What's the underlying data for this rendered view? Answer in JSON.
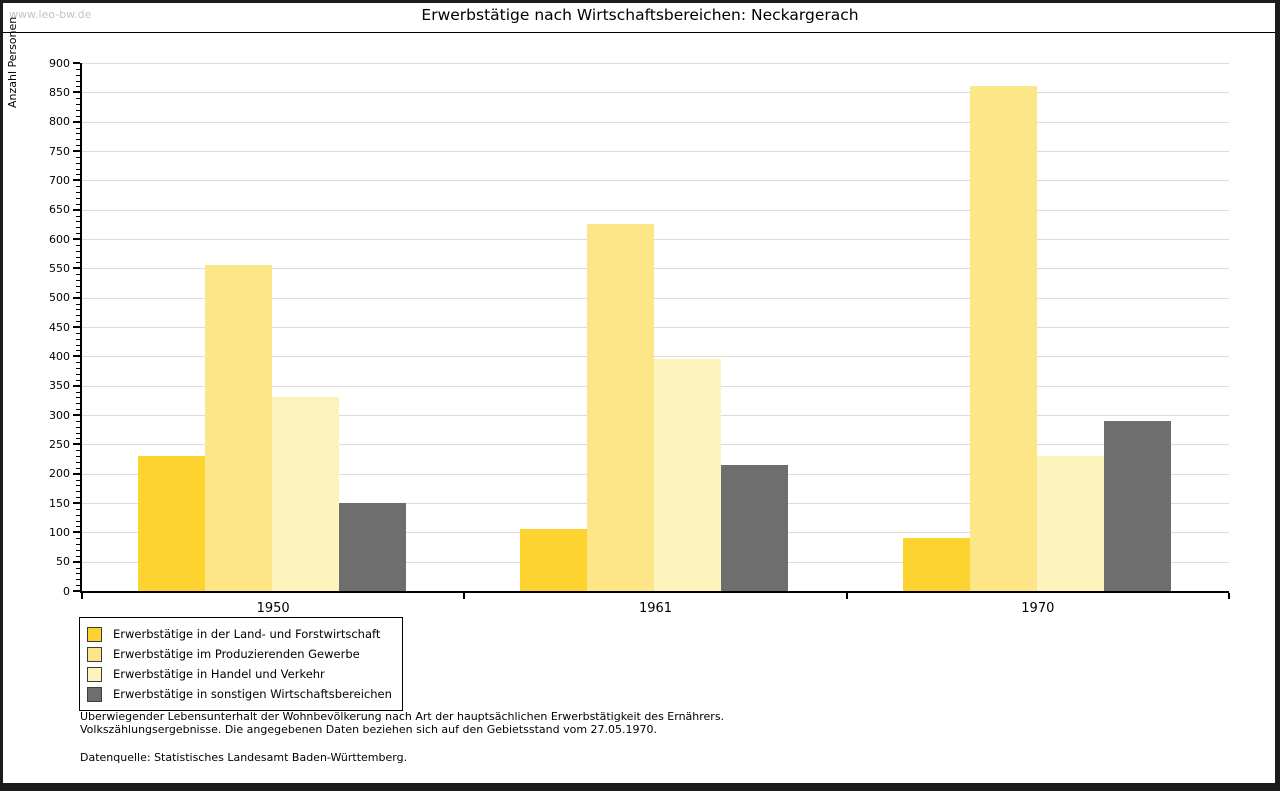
{
  "header": {
    "watermark": "www.leo-bw.de"
  },
  "chart_data": {
    "type": "bar",
    "title": "Erwerbstätige nach Wirtschaftsbereichen: Neckargerach",
    "xlabel": "",
    "ylabel": "Anzahl Personen",
    "categories": [
      "1950",
      "1961",
      "1970"
    ],
    "series": [
      {
        "name": "Erwerbstätige in der Land- und Forstwirtschaft",
        "color": "#FDD330",
        "values": [
          230,
          105,
          90
        ]
      },
      {
        "name": "Erwerbstätige im Produzierenden Gewerbe",
        "color": "#FCE687",
        "values": [
          555,
          625,
          860
        ]
      },
      {
        "name": "Erwerbstätige in Handel und Verkehr",
        "color": "#FCF3BD",
        "values": [
          330,
          395,
          230
        ]
      },
      {
        "name": "Erwerbstätige in sonstigen Wirtschaftsbereichen",
        "color": "#6E6E6E",
        "values": [
          150,
          215,
          290
        ]
      }
    ],
    "ylim": [
      0,
      900
    ],
    "ytick_step": 50,
    "ytick_minor_step": 10,
    "grid": true,
    "gridline_color": "#dcdcdc",
    "legend_position": "bottom-left"
  },
  "footnotes": {
    "line1": "Überwiegender Lebensunterhalt der Wohnbevölkerung nach Art der hauptsächlichen Erwerbstätigkeit des Ernährers.",
    "line2": "Volkszählungsergebnisse. Die angegebenen Daten beziehen sich auf den Gebietsstand vom 27.05.1970.",
    "source": "Datenquelle: Statistisches Landesamt Baden-Württemberg."
  }
}
